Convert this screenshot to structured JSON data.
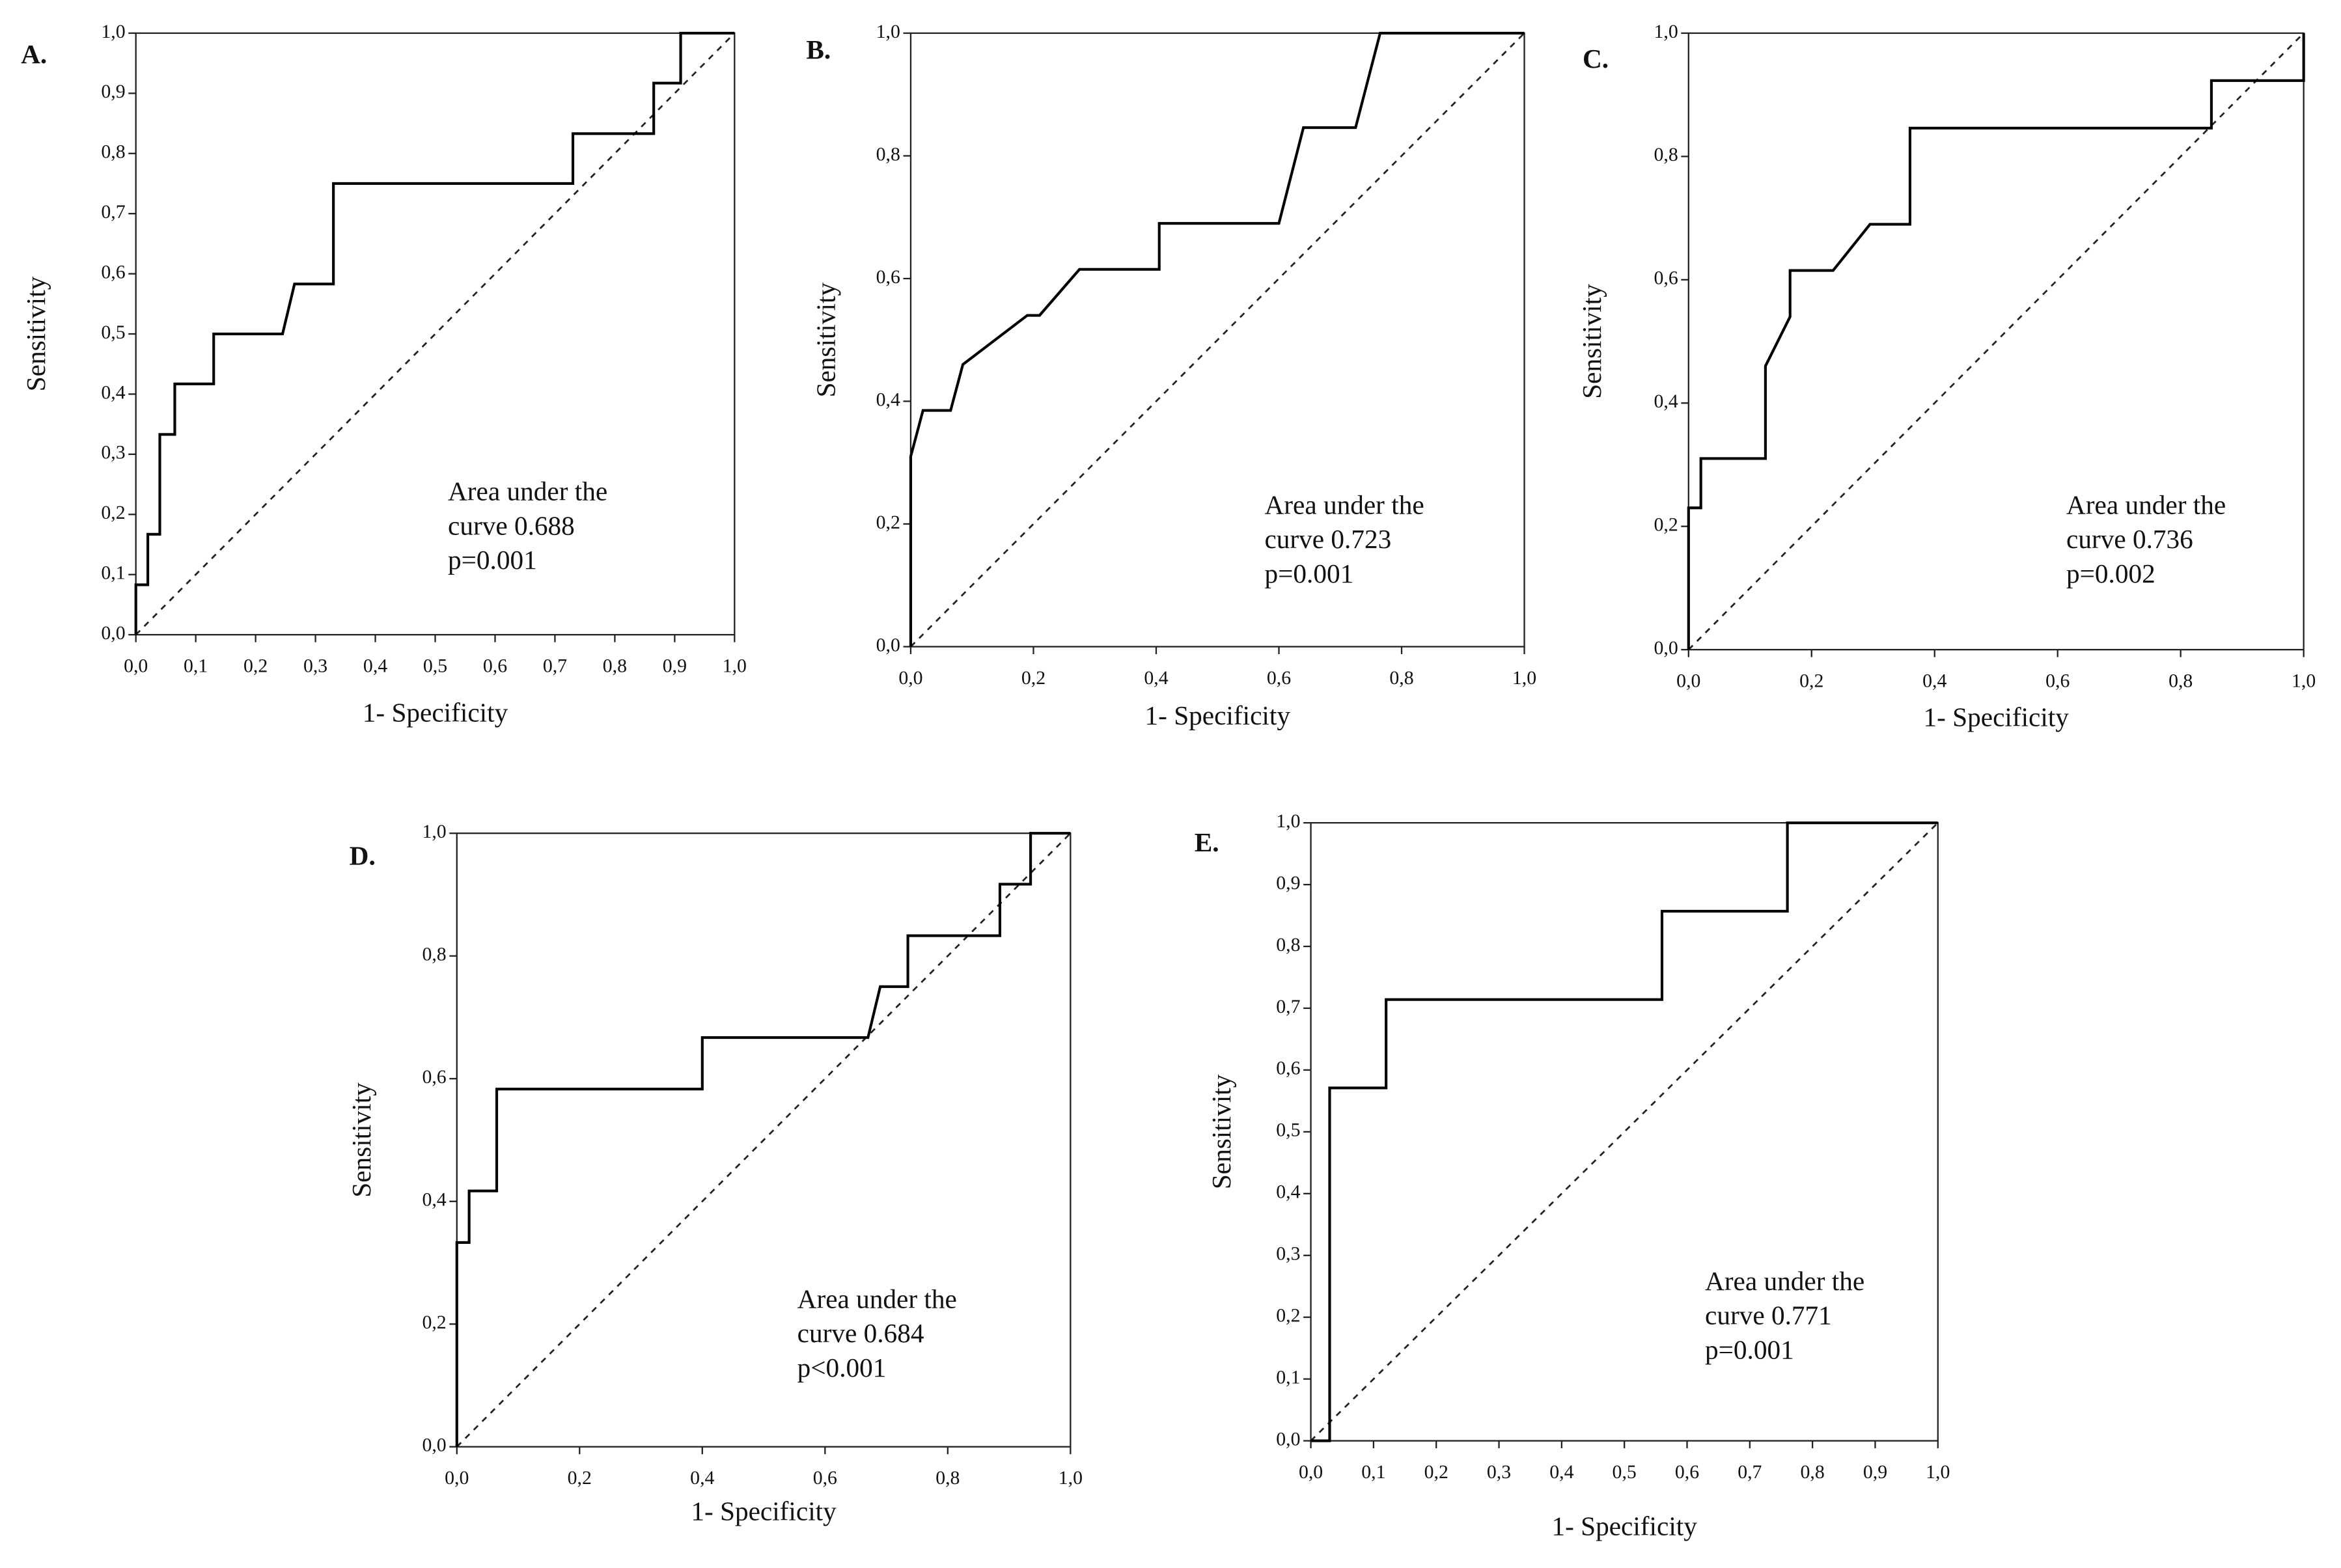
{
  "chart_data": [
    {
      "type": "line",
      "panel": "A.",
      "xlabel": "1- Specificity",
      "ylabel": "Sensitivity",
      "annotation": [
        "Area under the",
        "curve 0.688",
        "p=0.001"
      ],
      "x": [
        0,
        0,
        0.02,
        0.02,
        0.04,
        0.04,
        0.065,
        0.065,
        0.13,
        0.13,
        0.245,
        0.265,
        0.33,
        0.33,
        0.73,
        0.73,
        0.865,
        0.865,
        0.91,
        0.91,
        1
      ],
      "values": [
        0,
        0.083,
        0.083,
        0.167,
        0.167,
        0.333,
        0.333,
        0.417,
        0.417,
        0.5,
        0.5,
        0.583,
        0.583,
        0.75,
        0.75,
        0.833,
        0.833,
        0.917,
        0.917,
        1,
        1
      ],
      "color": "#000000",
      "xlim": [
        0,
        1
      ],
      "ylim": [
        0,
        1
      ],
      "xticks": [
        {
          "value": 0,
          "label": "0,0"
        },
        {
          "value": 0.1,
          "label": "0,1"
        },
        {
          "value": 0.2,
          "label": "0,2"
        },
        {
          "value": 0.3,
          "label": "0,3"
        },
        {
          "value": 0.4,
          "label": "0,4"
        },
        {
          "value": 0.5,
          "label": "0,5"
        },
        {
          "value": 0.6,
          "label": "0,6"
        },
        {
          "value": 0.7,
          "label": "0,7"
        },
        {
          "value": 0.8,
          "label": "0,8"
        },
        {
          "value": 0.9,
          "label": "0,9"
        },
        {
          "value": 1,
          "label": "1,0"
        }
      ],
      "yticks": [
        {
          "value": 0,
          "label": "0,0"
        },
        {
          "value": 0.1,
          "label": "0,1"
        },
        {
          "value": 0.2,
          "label": "0,2"
        },
        {
          "value": 0.3,
          "label": "0,3"
        },
        {
          "value": 0.4,
          "label": "0,4"
        },
        {
          "value": 0.5,
          "label": "0,5"
        },
        {
          "value": 0.6,
          "label": "0,6"
        },
        {
          "value": 0.7,
          "label": "0,7"
        },
        {
          "value": 0.8,
          "label": "0,8"
        },
        {
          "value": 0.9,
          "label": "0,9"
        },
        {
          "value": 1,
          "label": "1,0"
        }
      ]
    },
    {
      "type": "line",
      "panel": "B.",
      "xlabel": "1- Specificity",
      "ylabel": "Sensitivity",
      "annotation": [
        "Area under the",
        "curve 0.723",
        "p=0.001"
      ],
      "x": [
        0,
        0,
        0.02,
        0.065,
        0.085,
        0.19,
        0.21,
        0.275,
        0.405,
        0.405,
        0.6,
        0.64,
        0.725,
        0.765,
        1
      ],
      "values": [
        0,
        0.31,
        0.385,
        0.385,
        0.46,
        0.54,
        0.54,
        0.615,
        0.615,
        0.69,
        0.69,
        0.846,
        0.846,
        1,
        1
      ],
      "color": "#000000",
      "xlim": [
        0,
        1
      ],
      "ylim": [
        0,
        1
      ],
      "xticks": [
        {
          "value": 0,
          "label": "0,0"
        },
        {
          "value": 0.2,
          "label": "0,2"
        },
        {
          "value": 0.4,
          "label": "0,4"
        },
        {
          "value": 0.6,
          "label": "0,6"
        },
        {
          "value": 0.8,
          "label": "0,8"
        },
        {
          "value": 1,
          "label": "1,0"
        }
      ],
      "yticks": [
        {
          "value": 0,
          "label": "0,0"
        },
        {
          "value": 0.2,
          "label": "0,2"
        },
        {
          "value": 0.4,
          "label": "0,4"
        },
        {
          "value": 0.6,
          "label": "0,6"
        },
        {
          "value": 0.8,
          "label": "0,8"
        },
        {
          "value": 1,
          "label": "1,0"
        }
      ]
    },
    {
      "type": "line",
      "panel": "C.",
      "xlabel": "1- Specificity",
      "ylabel": "Sensitivity",
      "annotation": [
        "Area under the",
        "curve 0.736",
        "p=0.002"
      ],
      "x": [
        0,
        0,
        0.02,
        0.02,
        0.125,
        0.125,
        0.165,
        0.165,
        0.235,
        0.295,
        0.36,
        0.36,
        0.85,
        0.85,
        1,
        1
      ],
      "values": [
        0,
        0.23,
        0.23,
        0.31,
        0.31,
        0.46,
        0.54,
        0.615,
        0.615,
        0.69,
        0.69,
        0.846,
        0.846,
        0.923,
        0.923,
        1
      ],
      "color": "#000000",
      "xlim": [
        0,
        1
      ],
      "ylim": [
        0,
        1
      ],
      "xticks": [
        {
          "value": 0,
          "label": "0,0"
        },
        {
          "value": 0.2,
          "label": "0,2"
        },
        {
          "value": 0.4,
          "label": "0,4"
        },
        {
          "value": 0.6,
          "label": "0,6"
        },
        {
          "value": 0.8,
          "label": "0,8"
        },
        {
          "value": 1,
          "label": "1,0"
        }
      ],
      "yticks": [
        {
          "value": 0,
          "label": "0,0"
        },
        {
          "value": 0.2,
          "label": "0,2"
        },
        {
          "value": 0.4,
          "label": "0,4"
        },
        {
          "value": 0.6,
          "label": "0,6"
        },
        {
          "value": 0.8,
          "label": "0,8"
        },
        {
          "value": 1,
          "label": "1,0"
        }
      ]
    },
    {
      "type": "line",
      "panel": "D.",
      "xlabel": "1- Specificity",
      "ylabel": "Sensitivity",
      "annotation": [
        "Area under the",
        "curve 0.684",
        "p<0.001"
      ],
      "x": [
        0,
        0,
        0.02,
        0.02,
        0.065,
        0.065,
        0.4,
        0.4,
        0.67,
        0.69,
        0.735,
        0.735,
        0.885,
        0.885,
        0.935,
        0.935,
        1
      ],
      "values": [
        0,
        0.333,
        0.333,
        0.417,
        0.417,
        0.583,
        0.583,
        0.667,
        0.667,
        0.75,
        0.75,
        0.833,
        0.833,
        0.917,
        0.917,
        1,
        1
      ],
      "color": "#000000",
      "xlim": [
        0,
        1
      ],
      "ylim": [
        0,
        1
      ],
      "xticks": [
        {
          "value": 0,
          "label": "0,0"
        },
        {
          "value": 0.2,
          "label": "0,2"
        },
        {
          "value": 0.4,
          "label": "0,4"
        },
        {
          "value": 0.6,
          "label": "0,6"
        },
        {
          "value": 0.8,
          "label": "0,8"
        },
        {
          "value": 1,
          "label": "1,0"
        }
      ],
      "yticks": [
        {
          "value": 0,
          "label": "0,0"
        },
        {
          "value": 0.2,
          "label": "0,2"
        },
        {
          "value": 0.4,
          "label": "0,4"
        },
        {
          "value": 0.6,
          "label": "0,6"
        },
        {
          "value": 0.8,
          "label": "0,8"
        },
        {
          "value": 1,
          "label": "1,0"
        }
      ]
    },
    {
      "type": "line",
      "panel": "E.",
      "xlabel": "1- Specificity",
      "ylabel": "Sensitivity",
      "annotation": [
        "Area under the",
        "curve 0.771",
        "p=0.001"
      ],
      "x": [
        0,
        0.03,
        0.03,
        0.12,
        0.12,
        0.56,
        0.56,
        0.76,
        0.76,
        1
      ],
      "values": [
        0,
        0,
        0.571,
        0.571,
        0.714,
        0.714,
        0.857,
        0.857,
        1,
        1
      ],
      "color": "#000000",
      "xlim": [
        0,
        1
      ],
      "ylim": [
        0,
        1
      ],
      "xticks": [
        {
          "value": 0,
          "label": "0,0"
        },
        {
          "value": 0.1,
          "label": "0,1"
        },
        {
          "value": 0.2,
          "label": "0,2"
        },
        {
          "value": 0.3,
          "label": "0,3"
        },
        {
          "value": 0.4,
          "label": "0,4"
        },
        {
          "value": 0.5,
          "label": "0,5"
        },
        {
          "value": 0.6,
          "label": "0,6"
        },
        {
          "value": 0.7,
          "label": "0,7"
        },
        {
          "value": 0.8,
          "label": "0,8"
        },
        {
          "value": 0.9,
          "label": "0,9"
        },
        {
          "value": 1,
          "label": "1,0"
        }
      ],
      "yticks": [
        {
          "value": 0,
          "label": "0,0"
        },
        {
          "value": 0.1,
          "label": "0,1"
        },
        {
          "value": 0.2,
          "label": "0,2"
        },
        {
          "value": 0.3,
          "label": "0,3"
        },
        {
          "value": 0.4,
          "label": "0,4"
        },
        {
          "value": 0.5,
          "label": "0,5"
        },
        {
          "value": 0.6,
          "label": "0,6"
        },
        {
          "value": 0.7,
          "label": "0,7"
        },
        {
          "value": 0.8,
          "label": "0,8"
        },
        {
          "value": 0.9,
          "label": "0,9"
        },
        {
          "value": 1,
          "label": "1,0"
        }
      ]
    }
  ]
}
